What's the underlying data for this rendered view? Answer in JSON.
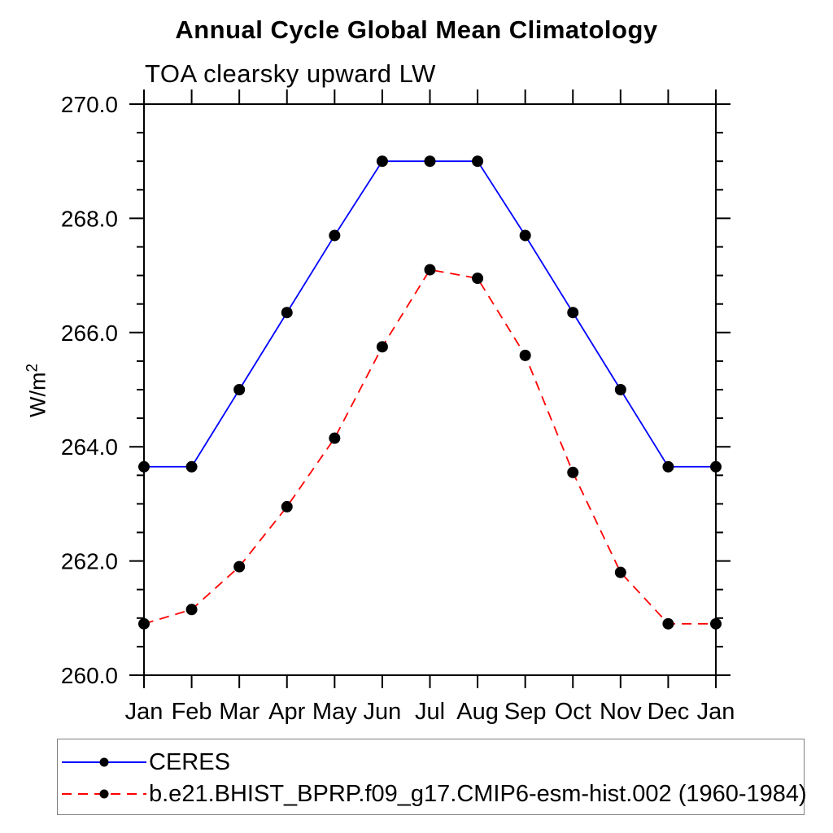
{
  "page": {
    "background": "#ffffff",
    "axis_color": "#000000",
    "text_color": "#000000",
    "legend_border_color": "#808080"
  },
  "chart_data": {
    "type": "line",
    "title": "Annual Cycle Global Mean Climatology",
    "subtitle": "TOA clearsky upward LW",
    "ylabel": "W/m²",
    "x_categories": [
      "Jan",
      "Feb",
      "Mar",
      "Apr",
      "May",
      "Jun",
      "Jul",
      "Aug",
      "Sep",
      "Oct",
      "Nov",
      "Dec",
      "Jan"
    ],
    "ylim": [
      260.0,
      270.0
    ],
    "yticks": {
      "major_values": [
        260.0,
        262.0,
        264.0,
        266.0,
        268.0,
        270.0
      ],
      "major_labels": [
        "260.0",
        "262.0",
        "264.0",
        "266.0",
        "268.0",
        "270.0"
      ],
      "minor_step": 0.5
    },
    "grid": false,
    "legend_position": "bottom",
    "series": [
      {
        "name": "CERES",
        "line_color": "#0000ff",
        "line_style": "solid",
        "marker": "filled-circle",
        "marker_color": "#000000",
        "values": [
          263.65,
          263.65,
          265.0,
          266.35,
          267.7,
          269.0,
          269.0,
          269.0,
          267.7,
          266.35,
          265.0,
          263.65,
          263.65
        ]
      },
      {
        "name": "b.e21.BHIST_BPRP.f09_g17.CMIP6-esm-hist.002 (1960-1984)",
        "line_color": "#ff0000",
        "line_style": "dashed",
        "marker": "filled-circle",
        "marker_color": "#000000",
        "values": [
          260.9,
          261.15,
          261.9,
          262.95,
          264.15,
          265.75,
          267.1,
          266.95,
          265.6,
          263.55,
          261.8,
          260.9,
          260.9
        ]
      }
    ]
  }
}
